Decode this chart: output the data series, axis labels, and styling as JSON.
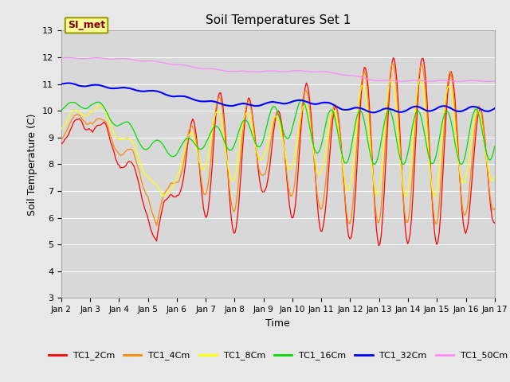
{
  "title": "Soil Temperatures Set 1",
  "xlabel": "Time",
  "ylabel": "Soil Temperature (C)",
  "ylim": [
    3.0,
    13.0
  ],
  "yticks": [
    3.0,
    4.0,
    5.0,
    6.0,
    7.0,
    8.0,
    9.0,
    10.0,
    11.0,
    12.0,
    13.0
  ],
  "xtick_labels": [
    "Jan 2",
    "Jan 3",
    "Jan 4",
    "Jan 5",
    "Jan 6",
    "Jan 7",
    "Jan 8",
    "Jan 9",
    "Jan 10",
    "Jan 11",
    "Jan 12",
    "Jan 13",
    "Jan 14",
    "Jan 15",
    "Jan 16",
    "Jan 17"
  ],
  "colors": {
    "TC1_2Cm": "#ff0000",
    "TC1_4Cm": "#ff8800",
    "TC1_8Cm": "#ffff00",
    "TC1_16Cm": "#00dd00",
    "TC1_32Cm": "#0000ff",
    "TC1_50Cm": "#ff88ff"
  },
  "legend_box_label": "SI_met",
  "legend_box_facecolor": "#ffff99",
  "legend_box_edgecolor": "#999900",
  "fig_facecolor": "#e8e8e8",
  "plot_facecolor": "#d8d8d8",
  "grid_color": "#ffffff"
}
